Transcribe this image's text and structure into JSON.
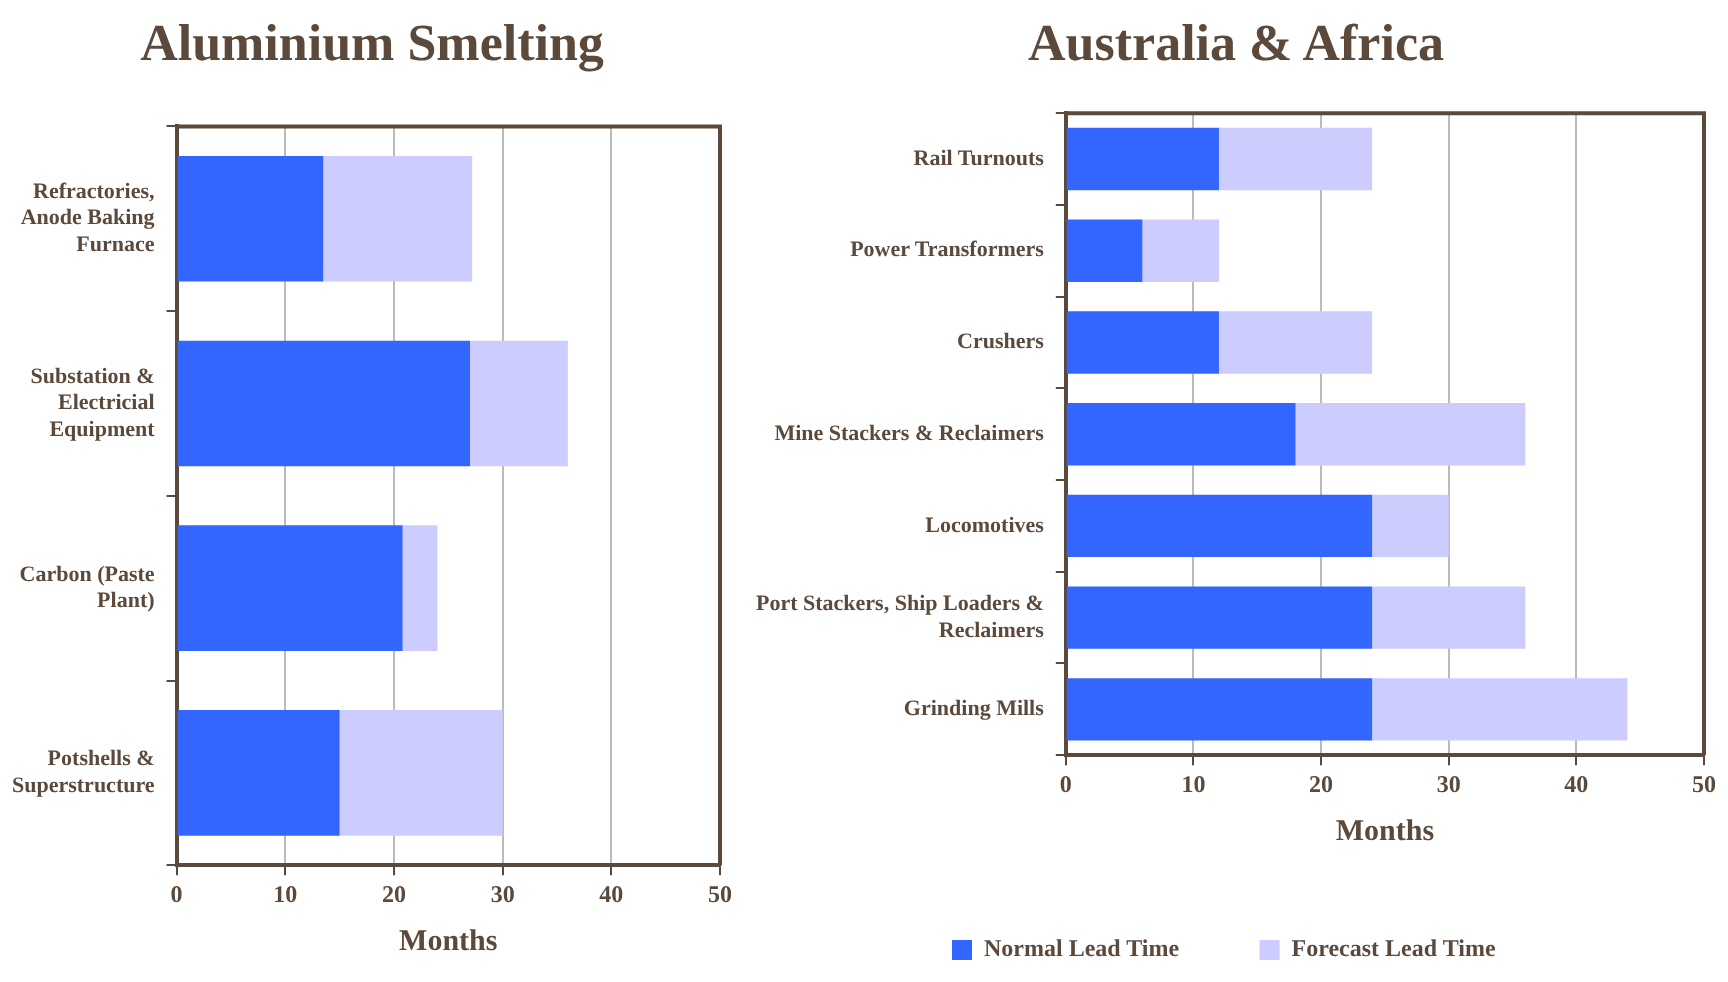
{
  "chart_data": [
    {
      "type": "bar",
      "title": "Aluminium Smelting",
      "orientation": "horizontal",
      "stacked": true,
      "xlabel": "Months",
      "categories": [
        "Refractories, Anode Baking Furnace",
        "Substation & Electricial Equipment",
        "Carbon (Paste Plant)",
        "Potshells & Superstructure"
      ],
      "series": [
        {
          "color": "#3366ff",
          "values": [
            13.5,
            27,
            20.8,
            15
          ]
        },
        {
          "color": "#ccccff",
          "values": [
            13.7,
            9,
            3.2,
            15
          ]
        }
      ],
      "xlim": [
        0,
        50
      ],
      "xticks": [
        0,
        10,
        20,
        30,
        40,
        50
      ],
      "grid": "x"
    },
    {
      "type": "bar",
      "title": "Australia & Africa",
      "orientation": "horizontal",
      "stacked": true,
      "xlabel": "Months",
      "categories": [
        "Rail Turnouts",
        "Power Transformers",
        "Crushers",
        "Mine Stackers & Reclaimers",
        "Locomotives",
        "Port Stackers, Ship Loaders & Reclaimers",
        "Grinding Mills"
      ],
      "series": [
        {
          "name": "Normal Lead Time",
          "color": "#3366ff",
          "values": [
            12,
            6,
            12,
            18,
            24,
            24,
            24
          ]
        },
        {
          "name": "Forecast Lead Time",
          "color": "#ccccff",
          "values": [
            12,
            6,
            12,
            18,
            6,
            12,
            20
          ]
        }
      ],
      "xlim": [
        0,
        50
      ],
      "xticks": [
        0,
        10,
        20,
        30,
        40,
        50
      ],
      "grid": "x",
      "legend": "bottom"
    }
  ]
}
